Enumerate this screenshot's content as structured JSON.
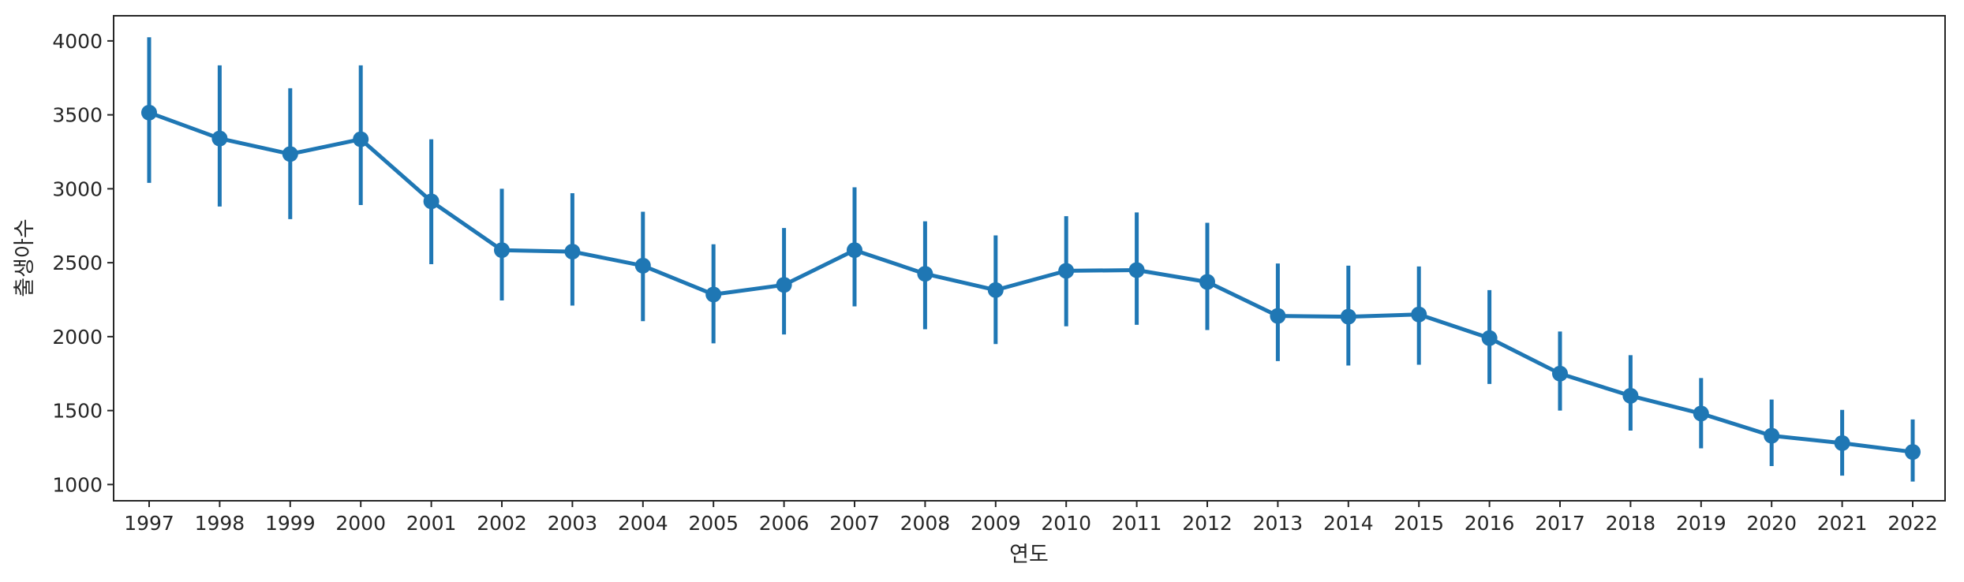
{
  "chart_data": {
    "type": "line",
    "style": "pointplot-with-error-bars",
    "title": "",
    "xlabel": "연도",
    "ylabel": "출생아수",
    "ylim": [
      890,
      4170
    ],
    "yticks": [
      1000,
      1500,
      2000,
      2500,
      3000,
      3500,
      4000
    ],
    "grid": false,
    "legend": "none",
    "color": "#1f77b4",
    "categories": [
      "1997",
      "1998",
      "1999",
      "2000",
      "2001",
      "2002",
      "2003",
      "2004",
      "2005",
      "2006",
      "2007",
      "2008",
      "2009",
      "2010",
      "2011",
      "2012",
      "2013",
      "2014",
      "2015",
      "2016",
      "2017",
      "2018",
      "2019",
      "2020",
      "2021",
      "2022"
    ],
    "values": [
      3515,
      3340,
      3235,
      3335,
      2915,
      2585,
      2575,
      2480,
      2285,
      2350,
      2585,
      2425,
      2315,
      2445,
      2450,
      2370,
      2140,
      2135,
      2150,
      1990,
      1750,
      1600,
      1480,
      1330,
      1280,
      1220
    ],
    "err_low": [
      3040,
      2880,
      2795,
      2890,
      2490,
      2245,
      2210,
      2105,
      1955,
      2015,
      2205,
      2050,
      1950,
      2070,
      2080,
      2045,
      1835,
      1805,
      1810,
      1680,
      1500,
      1365,
      1245,
      1125,
      1060,
      1020
    ],
    "err_high": [
      4025,
      3835,
      3680,
      3835,
      3335,
      3000,
      2970,
      2845,
      2625,
      2735,
      3010,
      2780,
      2685,
      2815,
      2840,
      2770,
      2495,
      2480,
      2475,
      2315,
      2035,
      1875,
      1720,
      1575,
      1505,
      1440
    ]
  }
}
